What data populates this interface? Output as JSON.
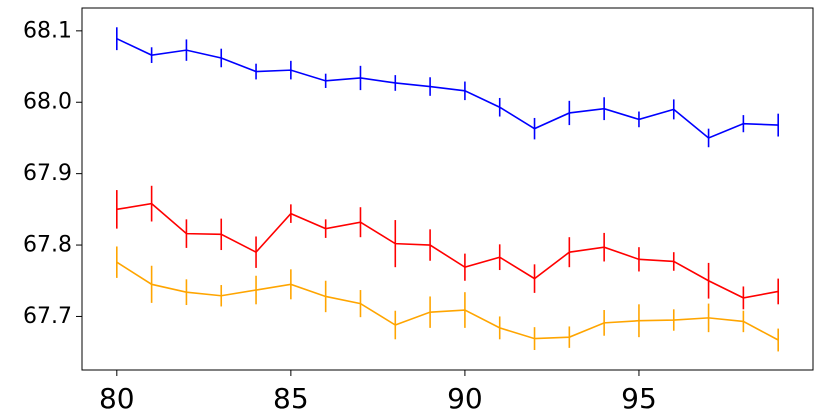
{
  "chart_data": {
    "type": "line",
    "x": [
      80,
      81,
      82,
      83,
      84,
      85,
      86,
      87,
      88,
      89,
      90,
      91,
      92,
      93,
      94,
      95,
      96,
      97,
      98,
      99
    ],
    "xlim": [
      79.0,
      100.0
    ],
    "ylim": [
      67.625,
      68.132
    ],
    "xticks": [
      80,
      85,
      90,
      95
    ],
    "yticks": [
      67.7,
      67.8,
      67.9,
      68.0,
      68.1
    ],
    "xtick_labels": [
      "80",
      "85",
      "90",
      "95"
    ],
    "ytick_labels": [
      "67.7",
      "67.8",
      "67.9",
      "68.0",
      "68.1"
    ],
    "grid": false,
    "legend": "none",
    "series": [
      {
        "color": "#0000ff",
        "values": [
          68.089,
          68.066,
          68.073,
          68.062,
          68.043,
          68.045,
          68.03,
          68.034,
          68.027,
          68.022,
          68.016,
          67.993,
          67.963,
          67.985,
          67.991,
          67.976,
          67.99,
          67.95,
          67.97,
          67.968
        ],
        "errors": [
          0.016,
          0.011,
          0.015,
          0.013,
          0.011,
          0.013,
          0.01,
          0.017,
          0.011,
          0.013,
          0.013,
          0.013,
          0.015,
          0.017,
          0.016,
          0.011,
          0.014,
          0.013,
          0.012,
          0.016
        ]
      },
      {
        "color": "#ff0000",
        "values": [
          67.85,
          67.858,
          67.816,
          67.815,
          67.79,
          67.844,
          67.823,
          67.832,
          67.802,
          67.8,
          67.769,
          67.783,
          67.753,
          67.79,
          67.797,
          67.78,
          67.777,
          67.75,
          67.726,
          67.735
        ],
        "errors": [
          0.027,
          0.025,
          0.02,
          0.022,
          0.022,
          0.013,
          0.013,
          0.021,
          0.033,
          0.022,
          0.019,
          0.018,
          0.02,
          0.021,
          0.02,
          0.017,
          0.013,
          0.025,
          0.016,
          0.018
        ]
      },
      {
        "color": "#ffa500",
        "values": [
          67.776,
          67.745,
          67.734,
          67.729,
          67.737,
          67.745,
          67.728,
          67.718,
          67.688,
          67.706,
          67.709,
          67.684,
          67.669,
          67.671,
          67.691,
          67.694,
          67.695,
          67.698,
          67.693,
          67.667
        ],
        "errors": [
          0.022,
          0.026,
          0.018,
          0.015,
          0.02,
          0.021,
          0.022,
          0.019,
          0.02,
          0.022,
          0.025,
          0.016,
          0.016,
          0.015,
          0.018,
          0.023,
          0.015,
          0.02,
          0.015,
          0.016
        ]
      }
    ]
  }
}
